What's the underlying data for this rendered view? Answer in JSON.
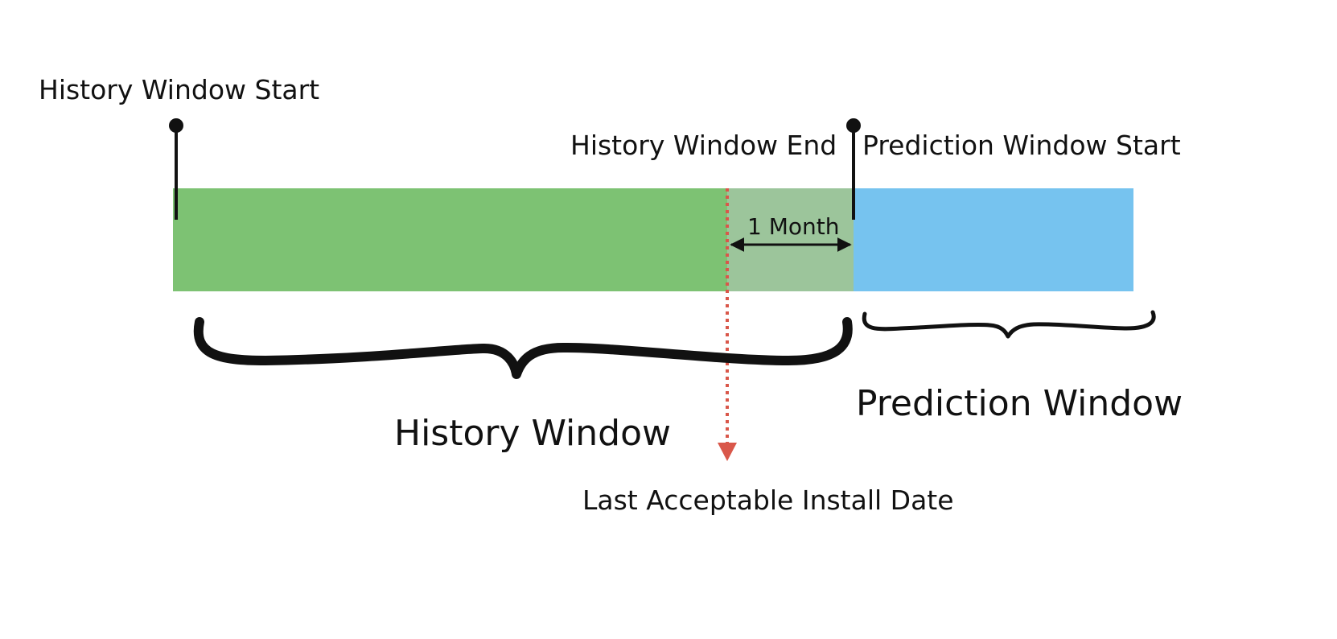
{
  "labels": {
    "history_window_start": "History Window Start",
    "history_window_end": "History Window End",
    "prediction_window_start": "Prediction Window Start",
    "one_month": "1 Month",
    "history_window": "History Window",
    "prediction_window": "Prediction Window",
    "last_acceptable_install_date": "Last Acceptable Install Date"
  },
  "colors": {
    "history_bar": "#7dc273",
    "buffer_bar": "#9cc59b",
    "prediction_bar": "#76c3ef",
    "dotted_marker": "#d9574a",
    "ink": "#111111"
  }
}
